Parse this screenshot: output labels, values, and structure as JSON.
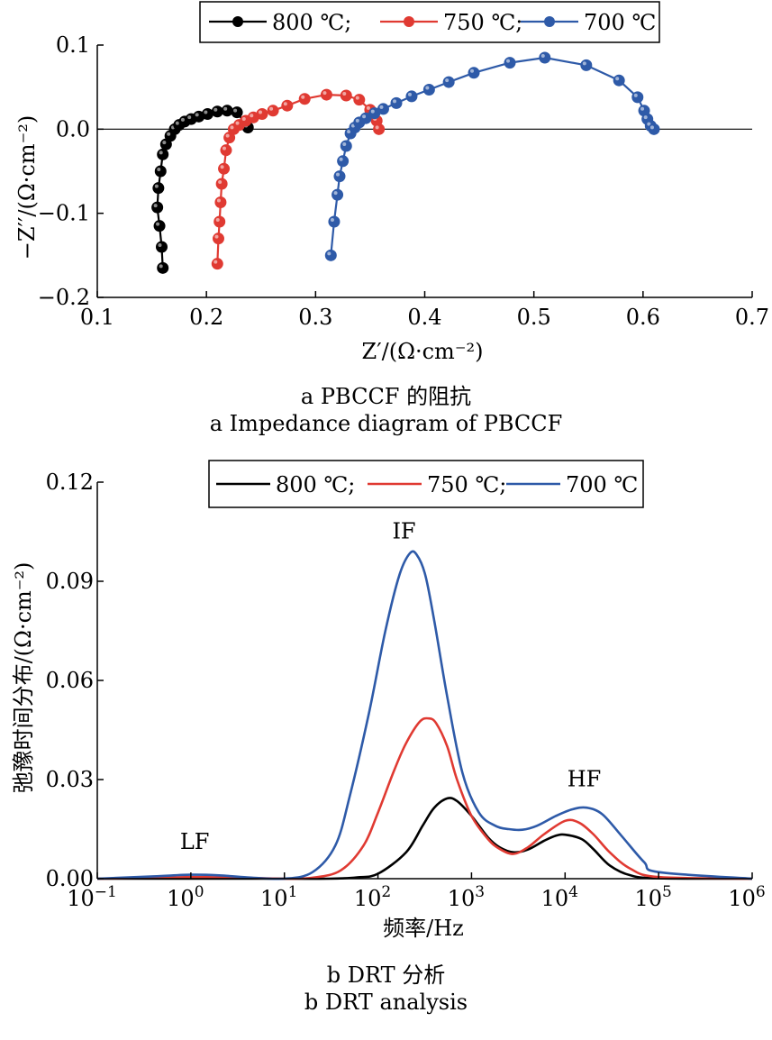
{
  "chart_data": [
    {
      "type": "scatter",
      "title": "",
      "xlabel": "Z′/(Ω·cm⁻²)",
      "ylabel": "−Z′′/(Ω·cm⁻²)",
      "xlim": [
        0.1,
        0.7
      ],
      "ylim": [
        -0.2,
        0.1
      ],
      "xticks": [
        "0.1",
        "0.2",
        "0.3",
        "0.4",
        "0.5",
        "0.6",
        "0.7"
      ],
      "yticks": [
        "−0.2",
        "−0.1",
        "0.0",
        "0.1"
      ],
      "zero_line": true,
      "legend_placement": "top",
      "caption_cn": "a  PBCCF 的阻抗",
      "caption_en": "a  Impedance diagram of  PBCCF",
      "series": [
        {
          "name": "800 ℃;",
          "color": "#000000",
          "x": [
            0.16,
            0.159,
            0.157,
            0.155,
            0.156,
            0.158,
            0.16,
            0.163,
            0.167,
            0.171,
            0.175,
            0.18,
            0.186,
            0.193,
            0.201,
            0.21,
            0.219,
            0.228,
            0.238
          ],
          "y": [
            -0.165,
            -0.14,
            -0.115,
            -0.093,
            -0.07,
            -0.05,
            -0.03,
            -0.018,
            -0.008,
            0.0,
            0.005,
            0.009,
            0.012,
            0.015,
            0.018,
            0.021,
            0.022,
            0.02,
            0.002
          ]
        },
        {
          "name": "750 ℃;",
          "color": "#e03a32",
          "x": [
            0.21,
            0.211,
            0.212,
            0.213,
            0.214,
            0.216,
            0.218,
            0.221,
            0.225,
            0.23,
            0.236,
            0.243,
            0.251,
            0.261,
            0.274,
            0.29,
            0.31,
            0.328,
            0.34,
            0.35,
            0.356,
            0.358
          ],
          "y": [
            -0.16,
            -0.13,
            -0.11,
            -0.087,
            -0.065,
            -0.047,
            -0.025,
            -0.01,
            0.0,
            0.005,
            0.01,
            0.014,
            0.018,
            0.022,
            0.028,
            0.036,
            0.041,
            0.04,
            0.035,
            0.023,
            0.01,
            0.0
          ]
        },
        {
          "name": "700 ℃",
          "color": "#2e5aa8",
          "x": [
            0.314,
            0.317,
            0.32,
            0.322,
            0.325,
            0.328,
            0.332,
            0.336,
            0.34,
            0.346,
            0.354,
            0.362,
            0.374,
            0.388,
            0.404,
            0.422,
            0.445,
            0.478,
            0.51,
            0.548,
            0.578,
            0.595,
            0.601,
            0.604,
            0.607,
            0.61
          ],
          "y": [
            -0.15,
            -0.11,
            -0.078,
            -0.056,
            -0.038,
            -0.02,
            -0.005,
            0.002,
            0.008,
            0.013,
            0.019,
            0.024,
            0.031,
            0.039,
            0.047,
            0.056,
            0.067,
            0.079,
            0.085,
            0.076,
            0.058,
            0.038,
            0.022,
            0.012,
            0.004,
            0.0
          ]
        }
      ]
    },
    {
      "type": "line",
      "title": "",
      "xlabel": "频率/Hz",
      "ylabel": "弛豫时间分布/(Ω·cm⁻²)",
      "xscale": "log",
      "xlim_exp": [
        -1,
        6
      ],
      "ylim": [
        0,
        0.12
      ],
      "xtick_base": "10",
      "xtick_exponents": [
        "−1",
        "0",
        "1",
        "2",
        "3",
        "4",
        "5",
        "6"
      ],
      "yticks": [
        "0.00",
        "0.03",
        "0.06",
        "0.09",
        "0.12"
      ],
      "legend_placement": "top",
      "annotations": [
        {
          "text": "LF",
          "x": 1.1,
          "y": 0.009
        },
        {
          "text": "IF",
          "x": 190,
          "y": 0.103
        },
        {
          "text": "HF",
          "x": 16000,
          "y": 0.028
        }
      ],
      "caption_cn": "b  DRT 分析",
      "caption_en": "b  DRT analysis",
      "series": [
        {
          "name": "800 ℃;",
          "color": "#000000",
          "x": [
            0.1,
            1,
            10,
            30,
            60,
            100,
            200,
            300,
            400,
            550,
            700,
            1000,
            1500,
            2000,
            2800,
            4000,
            6000,
            8000,
            10000,
            15000,
            20000,
            30000,
            50000,
            100000,
            1000000
          ],
          "y": [
            0.0,
            0.0,
            0.0,
            0.0,
            0.0004,
            0.0015,
            0.008,
            0.016,
            0.0215,
            0.0243,
            0.0235,
            0.019,
            0.0125,
            0.0095,
            0.008,
            0.0088,
            0.0115,
            0.013,
            0.0133,
            0.012,
            0.009,
            0.004,
            0.001,
            0.0001,
            0.0
          ]
        },
        {
          "name": "750 ℃;",
          "color": "#e03a32",
          "x": [
            0.1,
            0.5,
            1,
            2,
            5,
            10,
            20,
            40,
            70,
            100,
            150,
            200,
            280,
            350,
            420,
            550,
            700,
            1000,
            1500,
            2000,
            2800,
            4000,
            6000,
            10000,
            14000,
            20000,
            30000,
            50000,
            100000,
            1000000
          ],
          "y": [
            0.0,
            0.0003,
            0.0005,
            0.0004,
            0.0002,
            0.0,
            0.0003,
            0.0025,
            0.01,
            0.02,
            0.033,
            0.041,
            0.0475,
            0.0485,
            0.047,
            0.04,
            0.03,
            0.019,
            0.012,
            0.009,
            0.0075,
            0.0095,
            0.0135,
            0.0175,
            0.017,
            0.0135,
            0.008,
            0.003,
            0.0005,
            0.0
          ]
        },
        {
          "name": "700 ℃",
          "color": "#2e5aa8",
          "x": [
            0.1,
            0.4,
            1,
            2,
            4,
            10,
            20,
            35,
            50,
            80,
            120,
            170,
            220,
            260,
            320,
            400,
            550,
            800,
            1200,
            1800,
            2500,
            3500,
            5000,
            8000,
            12000,
            17000,
            25000,
            40000,
            70000,
            100000,
            1000000
          ],
          "y": [
            0.0,
            0.0007,
            0.0012,
            0.001,
            0.0004,
            0.0,
            0.002,
            0.01,
            0.025,
            0.05,
            0.075,
            0.092,
            0.0985,
            0.098,
            0.092,
            0.078,
            0.055,
            0.032,
            0.02,
            0.016,
            0.015,
            0.0148,
            0.016,
            0.019,
            0.021,
            0.0215,
            0.0195,
            0.013,
            0.005,
            0.002,
            0.0
          ]
        }
      ]
    }
  ]
}
